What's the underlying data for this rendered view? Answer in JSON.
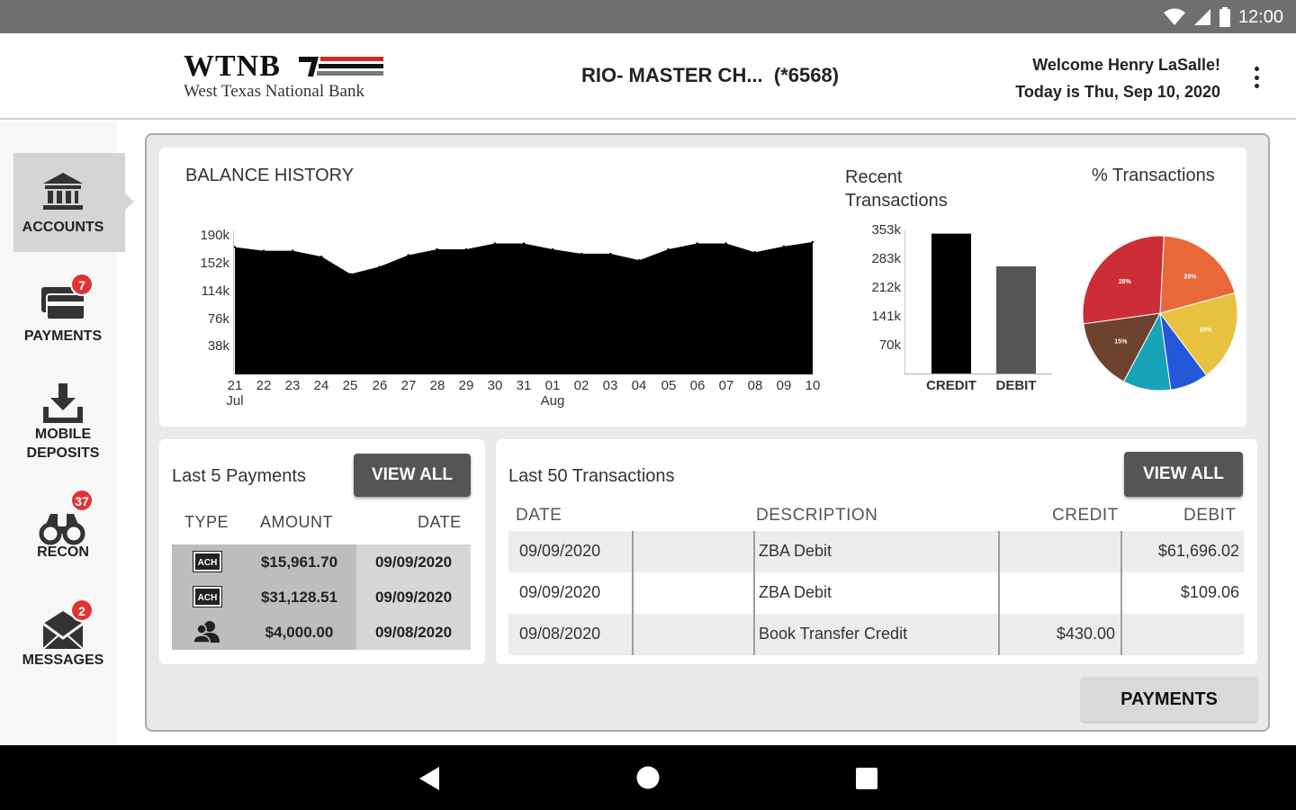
{
  "status_bar": {
    "time": "12:00"
  },
  "header": {
    "logo_word": "WTNB",
    "logo_sub": "West Texas National Bank",
    "account_name": "RIO- MASTER CH...  (*6568)",
    "welcome": "Welcome Henry LaSalle!",
    "today": "Today is Thu, Sep 10, 2020"
  },
  "sidebar": {
    "items": [
      {
        "label": "ACCOUNTS",
        "icon": "bank-icon",
        "badge": ""
      },
      {
        "label": "PAYMENTS",
        "icon": "payment-cards-icon",
        "badge": "7"
      },
      {
        "label": "MOBILE DEPOSITS",
        "icon": "mobile-deposit-icon",
        "badge": ""
      },
      {
        "label": "RECON",
        "icon": "binoculars-icon",
        "badge": "37"
      },
      {
        "label": "MESSAGES",
        "icon": "envelope-icon",
        "badge": "2"
      }
    ]
  },
  "balance_history": {
    "title": "BALANCE HISTORY",
    "chart_data": {
      "type": "area",
      "title": "BALANCE HISTORY",
      "x_ticks": [
        "21",
        "22",
        "23",
        "24",
        "25",
        "26",
        "27",
        "28",
        "29",
        "30",
        "31",
        "01",
        "02",
        "03",
        "04",
        "05",
        "06",
        "07",
        "08",
        "09",
        "10"
      ],
      "month_labels": [
        {
          "at": "21",
          "label": "Jul"
        },
        {
          "at": "01",
          "label": "Aug"
        }
      ],
      "y_ticks": [
        "190k",
        "152k",
        "114k",
        "76k",
        "38k"
      ],
      "ylim": [
        0,
        198000
      ],
      "series": [
        {
          "color": "#000000",
          "values": [
            175000,
            170000,
            170000,
            162000,
            138000,
            148000,
            164000,
            172000,
            172000,
            180000,
            180000,
            172000,
            166000,
            166000,
            157000,
            172000,
            180000,
            180000,
            168000,
            176000,
            182000
          ]
        }
      ]
    }
  },
  "recent_transactions": {
    "title_line1": "Recent",
    "title_line2": "Transactions",
    "chart_data": {
      "type": "bar",
      "categories": [
        "CREDIT",
        "DEBIT"
      ],
      "values": [
        345000,
        265000
      ],
      "colors": [
        "#000000",
        "#555555"
      ],
      "y_ticks": [
        "353k",
        "283k",
        "212k",
        "141k",
        "70k"
      ],
      "ylim": [
        0,
        353000
      ]
    }
  },
  "percent_transactions": {
    "title": "% Transactions",
    "chart_data": {
      "type": "pie",
      "values": [
        20,
        19,
        8,
        10,
        15,
        28
      ],
      "labels": [
        "20%",
        "19%",
        "",
        "",
        "15%",
        "28%"
      ],
      "colors": [
        "#e8683a",
        "#e8c23f",
        "#2458d8",
        "#19a3b8",
        "#6d4330",
        "#cc2d36"
      ]
    }
  },
  "payments": {
    "title": "Last 5 Payments",
    "view_all": "VIEW ALL",
    "columns": [
      "TYPE",
      "AMOUNT",
      "DATE"
    ],
    "rows": [
      {
        "type": "ACH",
        "type_icon": "ach-icon",
        "amount": "$15,961.70",
        "date": "09/09/2020"
      },
      {
        "type": "ACH",
        "type_icon": "ach-icon",
        "amount": "$31,128.51",
        "date": "09/09/2020"
      },
      {
        "type": "",
        "type_icon": "people-icon",
        "amount": "$4,000.00",
        "date": "09/08/2020"
      }
    ]
  },
  "transactions": {
    "title": "Last 50 Transactions",
    "view_all": "VIEW ALL",
    "columns": [
      "DATE",
      "DESCRIPTION",
      "CREDIT",
      "DEBIT"
    ],
    "rows": [
      {
        "date": "09/09/2020",
        "description": "ZBA Debit",
        "credit": "",
        "debit": "$61,696.02"
      },
      {
        "date": "09/09/2020",
        "description": "ZBA Debit",
        "credit": "",
        "debit": "$109.06"
      },
      {
        "date": "09/08/2020",
        "description": "Book Transfer Credit",
        "credit": "$430.00",
        "debit": ""
      }
    ]
  },
  "payments_button": "PAYMENTS"
}
